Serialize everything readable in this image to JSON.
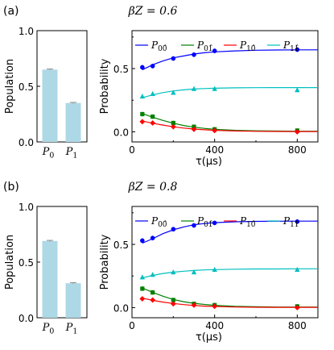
{
  "panels": [
    {
      "label": "(a)",
      "title": "βZ = 0.6",
      "bar_chart": {
        "type": "bar",
        "categories": [
          "P0",
          "P1"
        ],
        "values": [
          0.65,
          0.35
        ],
        "errors": [
          0.005,
          0.005
        ],
        "ylabel": "Population",
        "ylim": [
          0,
          1.0
        ],
        "yticks": [
          "0.0",
          "0.5",
          "1.0"
        ],
        "colors": {
          "bar": "#add8e6",
          "error": "#8a8a8a"
        }
      },
      "line_chart": {
        "type": "line",
        "xlabel": "τ(μs)",
        "ylabel": "Probability",
        "xlim": [
          0,
          900
        ],
        "ylim": [
          -0.08,
          0.8
        ],
        "xticks": [
          "0",
          "400",
          "800"
        ],
        "yticks": [
          "0.0",
          "0.5"
        ],
        "legend_position": "top",
        "series": [
          {
            "name": "P0,0̂",
            "color": "#0000ff",
            "marker": "circle",
            "x": [
              50,
              100,
              200,
              300,
              400,
              800
            ],
            "y": [
              0.51,
              0.52,
              0.58,
              0.61,
              0.64,
              0.65
            ],
            "fit_x": [
              50,
              100,
              150,
              200,
              250,
              300,
              350,
              400,
              500,
              600,
              700,
              800,
              900
            ],
            "fit_y": [
              0.49,
              0.53,
              0.56,
              0.585,
              0.6,
              0.615,
              0.625,
              0.632,
              0.64,
              0.645,
              0.647,
              0.648,
              0.648
            ]
          },
          {
            "name": "P0,1̂",
            "color": "#008000",
            "marker": "square",
            "x": [
              50,
              100,
              200,
              300,
              400,
              800
            ],
            "y": [
              0.14,
              0.12,
              0.07,
              0.04,
              0.02,
              0.01
            ],
            "fit_x": [
              50,
              100,
              150,
              200,
              250,
              300,
              350,
              400,
              500,
              600,
              700,
              800,
              900
            ],
            "fit_y": [
              0.145,
              0.115,
              0.09,
              0.068,
              0.05,
              0.037,
              0.027,
              0.02,
              0.012,
              0.008,
              0.006,
              0.005,
              0.005
            ]
          },
          {
            "name": "P1,0̂",
            "color": "#ff0000",
            "marker": "diamond",
            "x": [
              50,
              100,
              200,
              300,
              400,
              800
            ],
            "y": [
              0.08,
              0.07,
              0.04,
              0.02,
              0.01,
              0.0
            ],
            "fit_x": [
              50,
              100,
              150,
              200,
              250,
              300,
              350,
              400,
              500,
              600,
              700,
              800,
              900
            ],
            "fit_y": [
              0.085,
              0.068,
              0.053,
              0.04,
              0.03,
              0.022,
              0.016,
              0.012,
              0.007,
              0.004,
              0.003,
              0.002,
              0.002
            ]
          },
          {
            "name": "P1,1̂",
            "color": "#00bfbf",
            "marker": "triangle",
            "x": [
              50,
              100,
              200,
              300,
              400,
              800
            ],
            "y": [
              0.28,
              0.3,
              0.31,
              0.34,
              0.34,
              0.33
            ],
            "fit_x": [
              50,
              100,
              150,
              200,
              250,
              300,
              350,
              400,
              500,
              600,
              700,
              800,
              900
            ],
            "fit_y": [
              0.27,
              0.292,
              0.31,
              0.323,
              0.332,
              0.338,
              0.342,
              0.345,
              0.348,
              0.349,
              0.35,
              0.35,
              0.35
            ]
          }
        ]
      }
    },
    {
      "label": "(b)",
      "title": "βZ = 0.8",
      "bar_chart": {
        "type": "bar",
        "categories": [
          "P0",
          "P1"
        ],
        "values": [
          0.69,
          0.31
        ],
        "errors": [
          0.005,
          0.005
        ],
        "ylabel": "Population",
        "ylim": [
          0,
          1.0
        ],
        "yticks": [
          "0.0",
          "0.5",
          "1.0"
        ],
        "colors": {
          "bar": "#add8e6",
          "error": "#8a8a8a"
        }
      },
      "line_chart": {
        "type": "line",
        "xlabel": "τ(μs)",
        "ylabel": "Probability",
        "xlim": [
          0,
          900
        ],
        "ylim": [
          -0.08,
          0.8
        ],
        "xticks": [
          "0",
          "400",
          "800"
        ],
        "yticks": [
          "0.0",
          "0.5"
        ],
        "legend_position": "top",
        "series": [
          {
            "name": "P0,0̂",
            "color": "#0000ff",
            "marker": "circle",
            "x": [
              50,
              100,
              200,
              300,
              400,
              800
            ],
            "y": [
              0.53,
              0.55,
              0.62,
              0.65,
              0.67,
              0.68
            ],
            "fit_x": [
              50,
              100,
              150,
              200,
              250,
              300,
              350,
              400,
              500,
              600,
              700,
              800,
              900
            ],
            "fit_y": [
              0.51,
              0.545,
              0.585,
              0.615,
              0.638,
              0.655,
              0.665,
              0.672,
              0.679,
              0.682,
              0.683,
              0.684,
              0.684
            ]
          },
          {
            "name": "P0,1̂",
            "color": "#008000",
            "marker": "square",
            "x": [
              50,
              100,
              200,
              300,
              400,
              800
            ],
            "y": [
              0.15,
              0.12,
              0.06,
              0.03,
              0.02,
              0.01
            ],
            "fit_x": [
              50,
              100,
              150,
              200,
              250,
              300,
              350,
              400,
              500,
              600,
              700,
              800,
              900
            ],
            "fit_y": [
              0.155,
              0.12,
              0.09,
              0.065,
              0.047,
              0.034,
              0.025,
              0.018,
              0.01,
              0.007,
              0.005,
              0.005,
              0.005
            ]
          },
          {
            "name": "P1,0̂",
            "color": "#ff0000",
            "marker": "diamond",
            "x": [
              50,
              100,
              200,
              300,
              400,
              800
            ],
            "y": [
              0.07,
              0.06,
              0.03,
              0.02,
              0.01,
              0.0
            ],
            "fit_x": [
              50,
              100,
              150,
              200,
              250,
              300,
              350,
              400,
              500,
              600,
              700,
              800,
              900
            ],
            "fit_y": [
              0.075,
              0.058,
              0.044,
              0.033,
              0.024,
              0.017,
              0.012,
              0.009,
              0.005,
              0.003,
              0.002,
              0.002,
              0.002
            ]
          },
          {
            "name": "P1,1̂",
            "color": "#00bfbf",
            "marker": "triangle",
            "x": [
              50,
              100,
              200,
              300,
              400,
              800
            ],
            "y": [
              0.24,
              0.26,
              0.28,
              0.28,
              0.3,
              0.3
            ],
            "fit_x": [
              50,
              100,
              150,
              200,
              250,
              300,
              350,
              400,
              500,
              600,
              700,
              800,
              900
            ],
            "fit_y": [
              0.235,
              0.255,
              0.27,
              0.28,
              0.288,
              0.294,
              0.298,
              0.301,
              0.304,
              0.306,
              0.306,
              0.307,
              0.307
            ]
          }
        ]
      }
    }
  ],
  "chart_data": [
    {
      "type": "bar",
      "categories": [
        "P0",
        "P1"
      ],
      "values": [
        0.65,
        0.35
      ],
      "ylabel": "Population",
      "ylim": [
        0,
        1.0
      ]
    },
    {
      "type": "line",
      "xlabel": "τ(μs)",
      "ylabel": "Probability",
      "xlim": [
        0,
        900
      ],
      "series": [
        {
          "name": "P0,0̂",
          "x": [
            50,
            100,
            200,
            300,
            400,
            800
          ],
          "y": [
            0.51,
            0.52,
            0.58,
            0.61,
            0.64,
            0.65
          ]
        },
        {
          "name": "P0,1̂",
          "x": [
            50,
            100,
            200,
            300,
            400,
            800
          ],
          "y": [
            0.14,
            0.12,
            0.07,
            0.04,
            0.02,
            0.01
          ]
        },
        {
          "name": "P1,0̂",
          "x": [
            50,
            100,
            200,
            300,
            400,
            800
          ],
          "y": [
            0.08,
            0.07,
            0.04,
            0.02,
            0.01,
            0.0
          ]
        },
        {
          "name": "P1,1̂",
          "x": [
            50,
            100,
            200,
            300,
            400,
            800
          ],
          "y": [
            0.28,
            0.3,
            0.31,
            0.34,
            0.34,
            0.33
          ]
        }
      ]
    },
    {
      "type": "bar",
      "categories": [
        "P0",
        "P1"
      ],
      "values": [
        0.69,
        0.31
      ],
      "ylabel": "Population",
      "ylim": [
        0,
        1.0
      ]
    },
    {
      "type": "line",
      "xlabel": "τ(μs)",
      "ylabel": "Probability",
      "xlim": [
        0,
        900
      ],
      "series": [
        {
          "name": "P0,0̂",
          "x": [
            50,
            100,
            200,
            300,
            400,
            800
          ],
          "y": [
            0.53,
            0.55,
            0.62,
            0.65,
            0.67,
            0.68
          ]
        },
        {
          "name": "P0,1̂",
          "x": [
            50,
            100,
            200,
            300,
            400,
            800
          ],
          "y": [
            0.15,
            0.12,
            0.06,
            0.03,
            0.02,
            0.01
          ]
        },
        {
          "name": "P1,0̂",
          "x": [
            50,
            100,
            200,
            300,
            400,
            800
          ],
          "y": [
            0.07,
            0.06,
            0.03,
            0.02,
            0.01,
            0.0
          ]
        },
        {
          "name": "P1,1̂",
          "x": [
            50,
            100,
            200,
            300,
            400,
            800
          ],
          "y": [
            0.24,
            0.26,
            0.28,
            0.28,
            0.3,
            0.3
          ]
        }
      ]
    }
  ]
}
